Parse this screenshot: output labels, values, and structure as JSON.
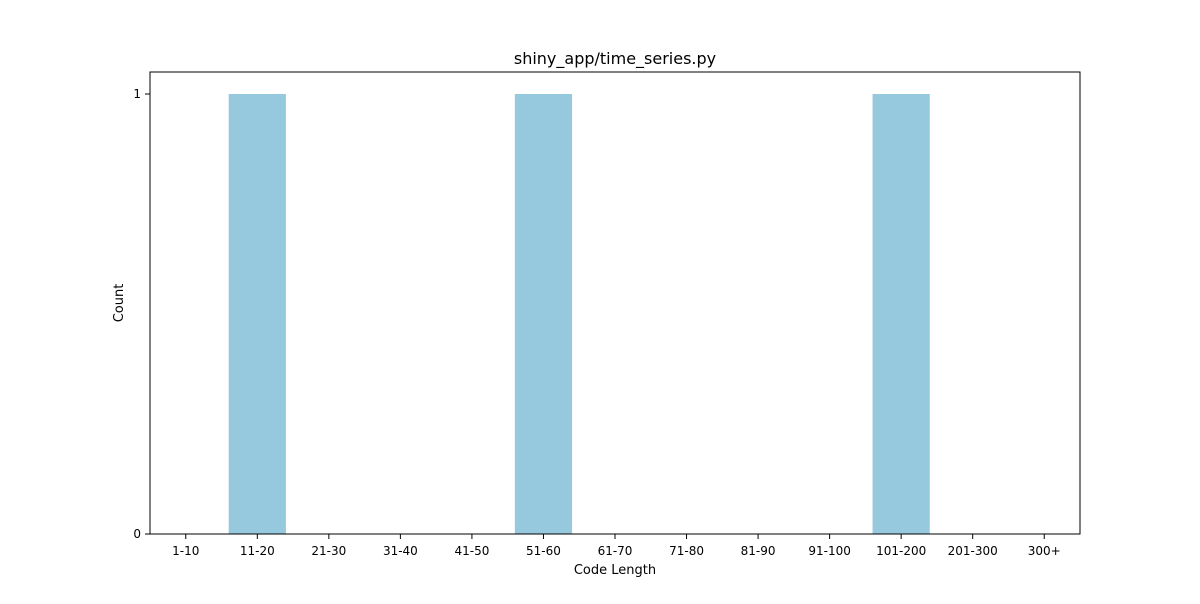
{
  "chart_data": {
    "type": "bar",
    "title": "shiny_app/time_series.py",
    "xlabel": "Code Length",
    "ylabel": "Count",
    "categories": [
      "1-10",
      "11-20",
      "21-30",
      "31-40",
      "41-50",
      "51-60",
      "61-70",
      "71-80",
      "81-90",
      "91-100",
      "101-200",
      "201-300",
      "300+"
    ],
    "values": [
      0,
      1,
      0,
      0,
      0,
      1,
      0,
      0,
      0,
      0,
      1,
      0,
      0
    ],
    "ylim": [
      0,
      1.05
    ],
    "yticks": [
      0,
      1
    ],
    "grid": false,
    "bar_color": "#96c9de"
  }
}
